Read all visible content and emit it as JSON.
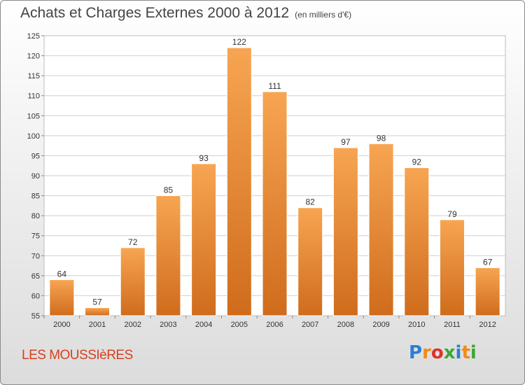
{
  "header": {
    "title": "Achats et Charges Externes 2000 à 2012",
    "subtitle": "(en milliers d'€)"
  },
  "footer": {
    "commune": "LES MOUSSIèRES",
    "logo_letters": [
      "P",
      "r",
      "o",
      "x",
      "i",
      "t",
      "i"
    ],
    "logo_colors": [
      "#2a7fd4",
      "#f08a1c",
      "#e0302a",
      "#3aa835",
      "#2a7fd4",
      "#f08a1c",
      "#3aa835"
    ]
  },
  "colors": {
    "bar_top": "#f7a552",
    "bar_bottom": "#cf6c1c",
    "grid": "#cfcfcf"
  },
  "chart_data": {
    "type": "bar",
    "title": "Achats et Charges Externes 2000 à 2012",
    "categories": [
      "2000",
      "2001",
      "2002",
      "2003",
      "2004",
      "2005",
      "2006",
      "2007",
      "2008",
      "2009",
      "2010",
      "2011",
      "2012"
    ],
    "values": [
      64,
      57,
      72,
      85,
      93,
      122,
      111,
      82,
      97,
      98,
      92,
      79,
      67
    ],
    "ylim": [
      55,
      125
    ],
    "yticks": [
      55,
      60,
      65,
      70,
      75,
      80,
      85,
      90,
      95,
      100,
      105,
      110,
      115,
      120,
      125
    ],
    "grid": true,
    "xlabel": "",
    "ylabel": ""
  }
}
